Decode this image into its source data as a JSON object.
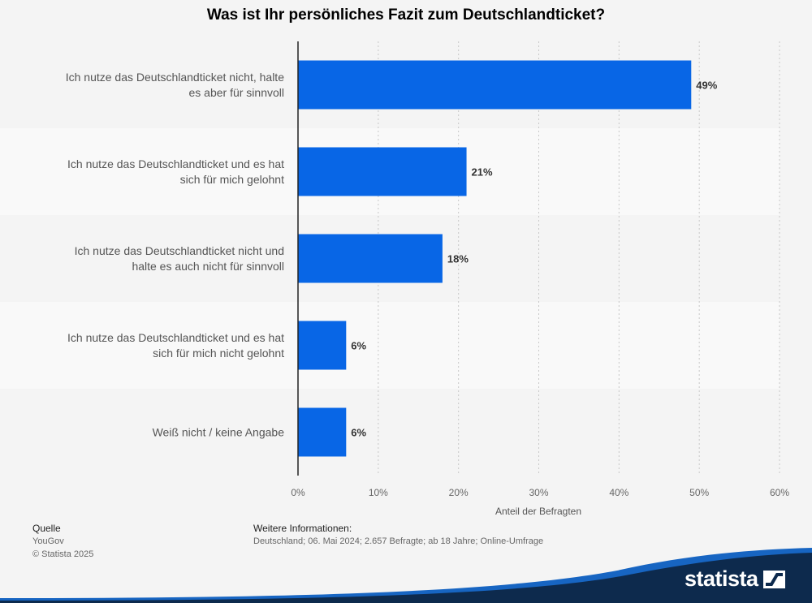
{
  "title": "Was ist Ihr persönliches Fazit zum Deutschlandticket?",
  "chart_data": {
    "type": "bar",
    "orientation": "horizontal",
    "title": "Was ist Ihr persönliches Fazit zum Deutschlandticket?",
    "categories": [
      [
        "Ich nutze das Deutschlandticket nicht, halte",
        "es aber für sinnvoll"
      ],
      [
        "Ich nutze das Deutschlandticket und es hat",
        "sich für mich gelohnt"
      ],
      [
        "Ich nutze das Deutschlandticket nicht und",
        "halte es auch nicht für sinnvoll"
      ],
      [
        "Ich nutze das Deutschlandticket und es hat",
        "sich für mich nicht gelohnt"
      ],
      [
        "Weiß nicht / keine Angabe"
      ]
    ],
    "values": [
      49,
      21,
      18,
      6,
      6
    ],
    "value_labels": [
      "49%",
      "21%",
      "18%",
      "6%",
      "6%"
    ],
    "xlim": [
      0,
      60
    ],
    "xticks": [
      0,
      10,
      20,
      30,
      40,
      50,
      60
    ],
    "xtick_labels": [
      "0%",
      "10%",
      "20%",
      "30%",
      "40%",
      "50%",
      "60%"
    ],
    "xlabel": "Anteil der Befragten",
    "ylabel": "",
    "grid": "vertical dotted",
    "bar_color": "#0866e6"
  },
  "source": {
    "heading": "Quelle",
    "name": "YouGov",
    "copyright": "© Statista 2025"
  },
  "info": {
    "heading": "Weitere Informationen:",
    "text": "Deutschland; 06. Mai 2024; 2.657 Befragte; ab 18 Jahre; Online-Umfrage"
  },
  "logo": {
    "text": "statista",
    "icon": "statista-logo-icon"
  },
  "colors": {
    "background": "#f4f4f4",
    "bar": "#0866e6",
    "footer_dark": "#0d2a4d",
    "footer_accent": "#1765c2"
  }
}
